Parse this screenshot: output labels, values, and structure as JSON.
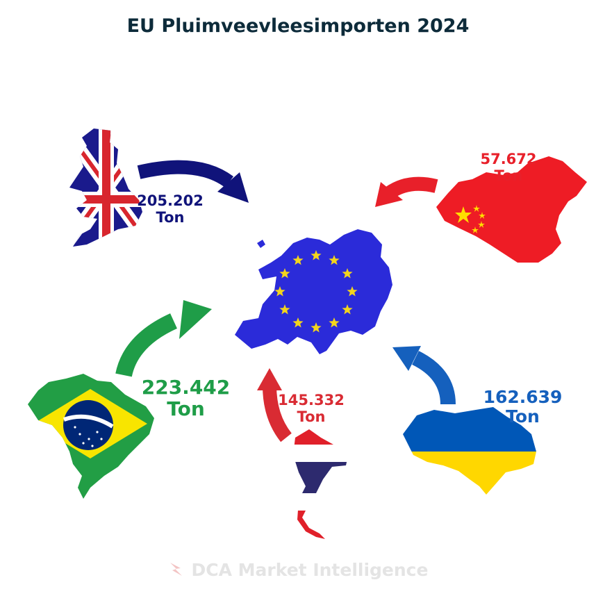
{
  "title": "EU Pluimveevleesimporten 2024",
  "footer": {
    "brand": "DCA Market Intelligence"
  },
  "destination": {
    "name": "EU",
    "flag_color": "#2b2bd9",
    "star_color": "#f3d51c"
  },
  "origins": [
    {
      "country": "United Kingdom",
      "value": "205.202",
      "unit": "Ton",
      "color": "#10137a"
    },
    {
      "country": "China",
      "value": "57.672",
      "unit": "Ton",
      "color": "#e8202a"
    },
    {
      "country": "Brazil",
      "value": "223.442",
      "unit": "Ton",
      "color": "#1f9d48"
    },
    {
      "country": "Thailand",
      "value": "145.332",
      "unit": "Ton",
      "color": "#d92b33"
    },
    {
      "country": "Ukraine",
      "value": "162.639",
      "unit": "Ton",
      "color": "#1560bd"
    }
  ]
}
